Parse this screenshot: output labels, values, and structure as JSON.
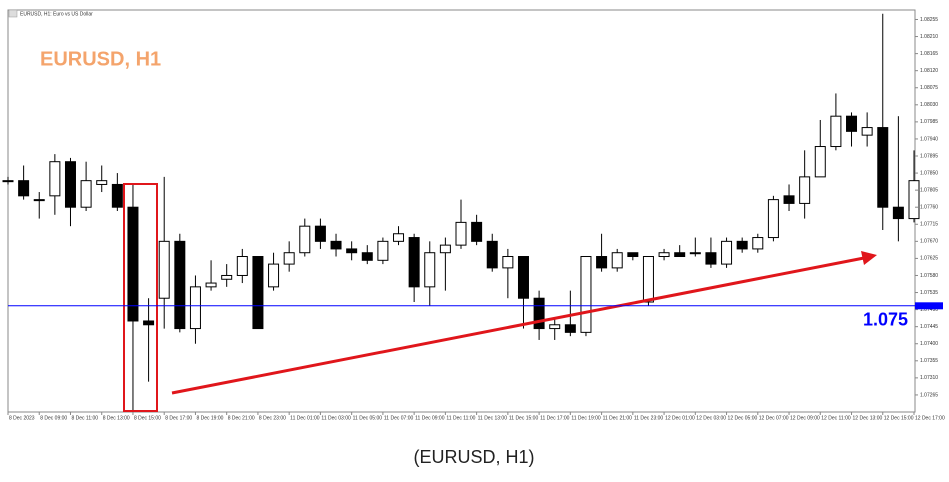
{
  "chart_data": {
    "type": "candlestick",
    "window_title": "EURUSD, H1: Euro vs US Dollar",
    "title": "EURUSD, H1",
    "caption": "(EURUSD, H1)",
    "categories": [
      "8 Dec 2023",
      null,
      "8 Dec 09:00",
      null,
      "8 Dec 11:00",
      null,
      "8 Dec 13:00",
      null,
      "8 Dec 15:00",
      null,
      "8 Dec 17:00",
      null,
      "8 Dec 19:00",
      null,
      "8 Dec 21:00",
      null,
      "8 Dec 23:00",
      null,
      "11 Dec 01:00",
      null,
      "11 Dec 03:00",
      null,
      "11 Dec 05:00",
      null,
      "11 Dec 07:00",
      null,
      "11 Dec 09:00",
      null,
      "11 Dec 11:00",
      null,
      "11 Dec 13:00",
      null,
      "11 Dec 15:00",
      null,
      "11 Dec 17:00",
      null,
      "11 Dec 19:00",
      null,
      "11 Dec 21:00",
      null,
      "11 Dec 23:00",
      null,
      "12 Dec 01:00",
      null,
      "12 Dec 03:00",
      null,
      "12 Dec 05:00",
      null,
      "12 Dec 07:00",
      null,
      "12 Dec 09:00",
      null,
      "12 Dec 11:00",
      null,
      "12 Dec 13:00",
      null,
      "12 Dec 15:00",
      null,
      "12 Dec 17:00"
    ],
    "open": [
      1.0783,
      1.0783,
      1.0778,
      1.0779,
      1.0788,
      1.0776,
      1.0782,
      1.0782,
      1.0776,
      1.0746,
      1.0752,
      1.0767,
      1.0744,
      1.0755,
      1.0757,
      1.0758,
      1.0763,
      1.0755,
      1.0761,
      1.0764,
      1.0771,
      1.0767,
      1.0765,
      1.0764,
      1.0762,
      1.0767,
      1.0768,
      1.0755,
      1.0764,
      1.0766,
      1.0772,
      1.0767,
      1.076,
      1.0763,
      1.0752,
      1.0744,
      1.0745,
      1.0743,
      1.0763,
      1.076,
      1.0764,
      1.0751,
      1.0763,
      1.0764,
      1.0764,
      1.0764,
      1.0761,
      1.0767,
      1.0765,
      1.0768,
      1.0779,
      1.0777,
      1.0784,
      1.0792,
      1.08,
      1.0795,
      1.0797,
      1.0776,
      1.0773
    ],
    "high": [
      1.0784,
      1.0787,
      1.078,
      1.079,
      1.0789,
      1.0788,
      1.0787,
      1.0785,
      1.0782,
      1.0752,
      1.0784,
      1.0769,
      1.0758,
      1.0762,
      1.0761,
      1.0765,
      1.0763,
      1.0764,
      1.0767,
      1.0773,
      1.0773,
      1.0769,
      1.0767,
      1.0766,
      1.0768,
      1.0771,
      1.0769,
      1.0767,
      1.0768,
      1.0778,
      1.0774,
      1.0769,
      1.0765,
      1.0763,
      1.0754,
      1.0747,
      1.0754,
      1.0763,
      1.0769,
      1.0765,
      1.0764,
      1.0763,
      1.0765,
      1.0766,
      1.0768,
      1.0768,
      1.0768,
      1.0768,
      1.0769,
      1.0779,
      1.0782,
      1.0791,
      1.0799,
      1.0806,
      1.0801,
      1.0801,
      1.0827,
      1.08,
      1.0791
    ],
    "low": [
      1.0782,
      1.0778,
      1.0773,
      1.0774,
      1.0771,
      1.0775,
      1.078,
      1.0775,
      1.0722,
      1.073,
      1.0744,
      1.0743,
      1.074,
      1.0754,
      1.0755,
      1.0756,
      1.0744,
      1.0754,
      1.0759,
      1.0763,
      1.0765,
      1.0763,
      1.0762,
      1.0761,
      1.0761,
      1.0766,
      1.0751,
      1.075,
      1.0754,
      1.0765,
      1.0766,
      1.0759,
      1.0752,
      1.0744,
      1.0741,
      1.0741,
      1.0742,
      1.0742,
      1.0759,
      1.0759,
      1.0762,
      1.075,
      1.0762,
      1.0763,
      1.0763,
      1.076,
      1.076,
      1.0764,
      1.0764,
      1.0767,
      1.0775,
      1.0773,
      1.0784,
      1.0791,
      1.0792,
      1.0792,
      1.077,
      1.0767,
      1.0772
    ],
    "close": [
      1.0783,
      1.0779,
      1.0778,
      1.0788,
      1.0776,
      1.0783,
      1.0783,
      1.0776,
      1.0746,
      1.0745,
      1.0767,
      1.0744,
      1.0755,
      1.0756,
      1.0758,
      1.0763,
      1.0744,
      1.0761,
      1.0764,
      1.0771,
      1.0767,
      1.0765,
      1.0764,
      1.0762,
      1.0767,
      1.0769,
      1.0755,
      1.0764,
      1.0766,
      1.0772,
      1.0767,
      1.076,
      1.0763,
      1.0752,
      1.0744,
      1.0745,
      1.0743,
      1.0763,
      1.076,
      1.0764,
      1.0763,
      1.0763,
      1.0764,
      1.0763,
      1.0764,
      1.0761,
      1.0767,
      1.0765,
      1.0768,
      1.0778,
      1.0777,
      1.0784,
      1.0792,
      1.08,
      1.0796,
      1.0797,
      1.0776,
      1.0773,
      1.0783
    ],
    "up_color": "#ffffff",
    "down_color": "#000000",
    "ylim": [
      1.0722,
      1.0828
    ],
    "yticks": [
      {
        "value": 1.08255,
        "label": "1.08255"
      },
      {
        "value": 1.0821,
        "label": "1.08210"
      },
      {
        "value": 1.08165,
        "label": "1.08165"
      },
      {
        "value": 1.0812,
        "label": "1.08120"
      },
      {
        "value": 1.08075,
        "label": "1.08075"
      },
      {
        "value": 1.0803,
        "label": "1.08030"
      },
      {
        "value": 1.07985,
        "label": "1.07985"
      },
      {
        "value": 1.0794,
        "label": "1.07940"
      },
      {
        "value": 1.07895,
        "label": "1.07895"
      },
      {
        "value": 1.0785,
        "label": "1.07850"
      },
      {
        "value": 1.07805,
        "label": "1.07805"
      },
      {
        "value": 1.0776,
        "label": "1.07760"
      },
      {
        "value": 1.07715,
        "label": "1.07715"
      },
      {
        "value": 1.0767,
        "label": "1.07670"
      },
      {
        "value": 1.07625,
        "label": "1.07625"
      },
      {
        "value": 1.0758,
        "label": "1.07580"
      },
      {
        "value": 1.07535,
        "label": "1.07535"
      },
      {
        "value": 1.0749,
        "label": "1.07490"
      },
      {
        "value": 1.07445,
        "label": "1.07445"
      },
      {
        "value": 1.074,
        "label": "1.07400"
      },
      {
        "value": 1.07355,
        "label": "1.07355"
      },
      {
        "value": 1.0731,
        "label": "1.07310"
      },
      {
        "value": 1.07265,
        "label": "1.07265"
      }
    ],
    "hline": {
      "value": 1.075,
      "label": "1.075",
      "color": "#0000ff"
    },
    "grid": false
  }
}
